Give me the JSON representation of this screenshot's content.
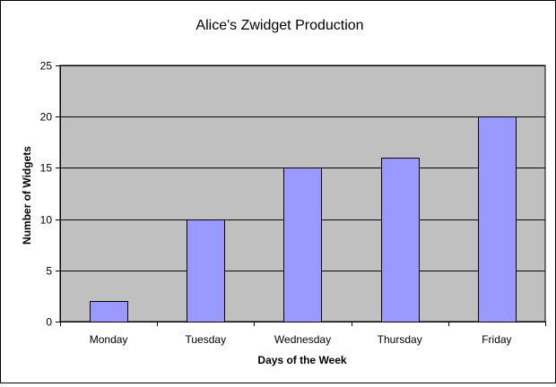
{
  "chart_data": {
    "type": "bar",
    "title": "Alice's Zwidget Production",
    "xlabel": "Days of the Week",
    "ylabel": "Number of Widgets",
    "categories": [
      "Monday",
      "Tuesday",
      "Wednesday",
      "Thursday",
      "Friday"
    ],
    "values": [
      2,
      10,
      15,
      16,
      20
    ],
    "ylim": [
      0,
      25
    ],
    "yticks": [
      "0",
      "5",
      "10",
      "15",
      "20",
      "25"
    ],
    "ytick_values": [
      0,
      5,
      10,
      15,
      20,
      25
    ],
    "grid": true,
    "legend": "none",
    "colors": {
      "bar_fill": "#9999ff",
      "bar_stroke": "#000000",
      "plot_background": "#c0c0c0",
      "gridline": "#000000",
      "axis": "#000000"
    }
  }
}
